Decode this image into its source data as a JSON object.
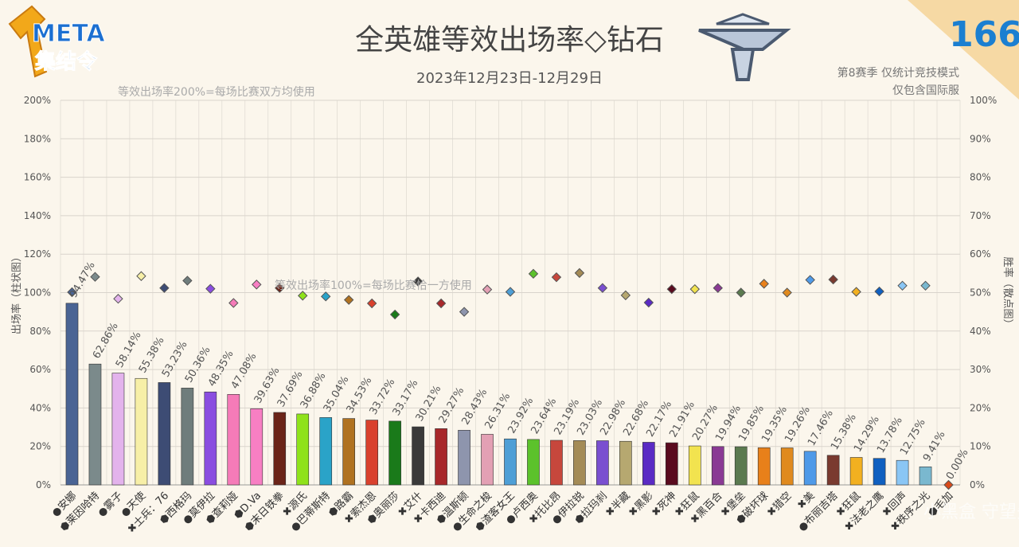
{
  "header": {
    "title": "全英雄等效出场率◇钻石",
    "date_range": "2023年12月23日-12月29日",
    "note_line1": "第8赛季 仅统计竞技模式",
    "note_line2": "仅包含国际服",
    "issue_number": "166",
    "logo_line1": "META",
    "logo_line2": "集结令",
    "watermark": "小黑盒 守望先锋话语"
  },
  "annotations": {
    "ref_200": "等效出场率200%=每场比赛双方均使用",
    "ref_100": "等效出场率100%=每场比赛恰一方使用"
  },
  "colors": {
    "background": "#fbf6ec",
    "grid": "#d9d4cc",
    "axis_text": "#555555",
    "corner": "#f6d9a4",
    "issue_number": "#1b7fd1"
  },
  "chart_data": {
    "type": "bar",
    "left_axis": {
      "label": "出场率（柱状图）",
      "ylim": [
        0,
        200
      ],
      "ticks": [
        "0%",
        "20%",
        "40%",
        "60%",
        "80%",
        "100%",
        "120%",
        "140%",
        "160%",
        "180%",
        "200%"
      ]
    },
    "right_axis": {
      "label": "胜率（散点图）",
      "ylim": [
        0,
        100
      ],
      "ticks": [
        "0%",
        "10%",
        "20%",
        "30%",
        "40%",
        "50%",
        "60%",
        "70%",
        "80%",
        "90%",
        "100%"
      ]
    },
    "grid": true,
    "heroes": [
      {
        "name": "安娜",
        "role": "support",
        "pick": 94.47,
        "pick_label": "94.47%",
        "win": 50.1,
        "color": "#4a6494"
      },
      {
        "name": "莱因哈特",
        "role": "tank",
        "pick": 62.86,
        "pick_label": "62.86%",
        "win": 54.1,
        "color": "#7b8a8b"
      },
      {
        "name": "雾子",
        "role": "support",
        "pick": 58.14,
        "pick_label": "58.14%",
        "win": 48.4,
        "color": "#e3b3ec"
      },
      {
        "name": "天使",
        "role": "support",
        "pick": 55.38,
        "pick_label": "55.38%",
        "win": 54.3,
        "color": "#f7efa7"
      },
      {
        "name": "士兵：76",
        "role": "damage",
        "pick": 53.23,
        "pick_label": "53.23%",
        "win": 51.2,
        "color": "#3d4c74"
      },
      {
        "name": "西格玛",
        "role": "tank",
        "pick": 50.36,
        "pick_label": "50.36%",
        "win": 53.1,
        "color": "#6f7d7c"
      },
      {
        "name": "莫伊拉",
        "role": "support",
        "pick": 48.35,
        "pick_label": "48.35%",
        "win": 51.0,
        "color": "#8a4de0"
      },
      {
        "name": "查莉娅",
        "role": "tank",
        "pick": 47.08,
        "pick_label": "47.08%",
        "win": 47.3,
        "color": "#f57bb8"
      },
      {
        "name": "D.Va",
        "role": "tank",
        "pick": 39.63,
        "pick_label": "39.63%",
        "win": 52.1,
        "color": "#f77fc3"
      },
      {
        "name": "末日铁拳",
        "role": "tank",
        "pick": 37.69,
        "pick_label": "37.69%",
        "win": 51.2,
        "color": "#6b2418"
      },
      {
        "name": "源氏",
        "role": "damage",
        "pick": 36.88,
        "pick_label": "36.88%",
        "win": 49.2,
        "color": "#8fe21a"
      },
      {
        "name": "巴蒂斯特",
        "role": "support",
        "pick": 35.04,
        "pick_label": "35.04%",
        "win": 49.0,
        "color": "#2aa3c8"
      },
      {
        "name": "路霸",
        "role": "tank",
        "pick": 34.53,
        "pick_label": "34.53%",
        "win": 48.1,
        "color": "#b07220"
      },
      {
        "name": "索杰恩",
        "role": "damage",
        "pick": 33.72,
        "pick_label": "33.72%",
        "win": 47.2,
        "color": "#d9412d"
      },
      {
        "name": "奥丽莎",
        "role": "tank",
        "pick": 33.17,
        "pick_label": "33.17%",
        "win": 44.3,
        "color": "#1a7a1a"
      },
      {
        "name": "艾什",
        "role": "damage",
        "pick": 30.21,
        "pick_label": "30.21%",
        "win": 52.9,
        "color": "#3a3a3a"
      },
      {
        "name": "卡西迪",
        "role": "damage",
        "pick": 29.27,
        "pick_label": "29.27%",
        "win": 47.2,
        "color": "#a8282a"
      },
      {
        "name": "温斯顿",
        "role": "tank",
        "pick": 28.43,
        "pick_label": "28.43%",
        "win": 45.0,
        "color": "#8e95ad"
      },
      {
        "name": "生命之梭",
        "role": "support",
        "pick": 26.31,
        "pick_label": "26.31%",
        "win": 50.8,
        "color": "#e3a0b4"
      },
      {
        "name": "渣客女王",
        "role": "tank",
        "pick": 23.92,
        "pick_label": "23.92%",
        "win": 50.2,
        "color": "#4e9fd6"
      },
      {
        "name": "卢西奥",
        "role": "support",
        "pick": 23.64,
        "pick_label": "23.64%",
        "win": 54.9,
        "color": "#5cc22b"
      },
      {
        "name": "托比昂",
        "role": "damage",
        "pick": 23.19,
        "pick_label": "23.19%",
        "win": 54.0,
        "color": "#c7473c"
      },
      {
        "name": "伊拉锐",
        "role": "support",
        "pick": 23.03,
        "pick_label": "23.03%",
        "win": 55.1,
        "color": "#a48b56"
      },
      {
        "name": "拉玛刹",
        "role": "tank",
        "pick": 22.98,
        "pick_label": "22.98%",
        "win": 51.2,
        "color": "#7a4fd0"
      },
      {
        "name": "半藏",
        "role": "damage",
        "pick": 22.68,
        "pick_label": "22.68%",
        "win": 49.3,
        "color": "#b6a870"
      },
      {
        "name": "黑影",
        "role": "damage",
        "pick": 22.17,
        "pick_label": "22.17%",
        "win": 47.4,
        "color": "#5a2bc4"
      },
      {
        "name": "死神",
        "role": "damage",
        "pick": 21.91,
        "pick_label": "21.91%",
        "win": 50.9,
        "color": "#5a0b1e"
      },
      {
        "name": "狂鼠",
        "role": "damage",
        "pick": 20.27,
        "pick_label": "20.27%",
        "win": 50.9,
        "color": "#f2e34f"
      },
      {
        "name": "黑百合",
        "role": "damage",
        "pick": 19.94,
        "pick_label": "19.94%",
        "win": 51.2,
        "color": "#8a3a94"
      },
      {
        "name": "堡垒",
        "role": "damage",
        "pick": 19.85,
        "pick_label": "19.85%",
        "win": 50.0,
        "color": "#5b7a4f"
      },
      {
        "name": "破坏球",
        "role": "tank",
        "pick": 19.35,
        "pick_label": "19.35%",
        "win": 52.3,
        "color": "#e8801a"
      },
      {
        "name": "猎空",
        "role": "damage",
        "pick": 19.26,
        "pick_label": "19.26%",
        "win": 50.0,
        "color": "#e08a1e"
      },
      {
        "name": "美",
        "role": "damage",
        "pick": 17.46,
        "pick_label": "17.46%",
        "win": 53.3,
        "color": "#4f9ae8"
      },
      {
        "name": "布丽吉塔",
        "role": "support",
        "pick": 15.38,
        "pick_label": "15.38%",
        "win": 53.4,
        "color": "#7a3a2f"
      },
      {
        "name": "狂鼠",
        "role": "damage",
        "pick": 14.29,
        "pick_label": "14.29%",
        "win": 50.2,
        "color": "#f2b020"
      },
      {
        "name": "法老之鹰",
        "role": "damage",
        "pick": 13.78,
        "pick_label": "13.78%",
        "win": 50.3,
        "color": "#1060c0"
      },
      {
        "name": "回声",
        "role": "damage",
        "pick": 12.75,
        "pick_label": "12.75%",
        "win": 51.8,
        "color": "#8ac6f5"
      },
      {
        "name": "秩序之光",
        "role": "damage",
        "pick": 9.41,
        "pick_label": "9.41%",
        "win": 51.8,
        "color": "#7ab8cf"
      },
      {
        "name": "毛加",
        "role": "tank",
        "pick": 0.0,
        "pick_label": "0.00%",
        "win": 0.0,
        "color": "#d94a1a"
      }
    ]
  }
}
